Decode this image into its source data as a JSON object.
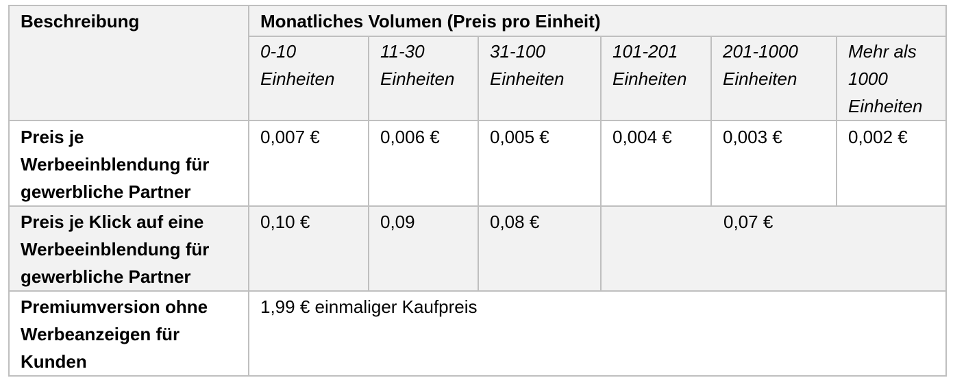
{
  "table": {
    "header": {
      "description_label": "Beschreibung",
      "volume_label": "Monatliches Volumen (Preis pro Einheit)",
      "tiers": [
        "0-10\nEinheiten",
        "11-30\nEinheiten",
        "31-100\nEinheiten",
        "101-201\nEinheiten",
        "201-1000\nEinheiten",
        "Mehr als\n1000\nEinheiten"
      ]
    },
    "rows": [
      {
        "label": "Preis je\nWerbeeinblendung für\ngewerbliche Partner",
        "values": [
          "0,007 €",
          "0,006 €",
          "0,005 €",
          "0,004 €",
          "0,003 €",
          "0,002 €"
        ]
      },
      {
        "label": "Preis je Klick auf eine\nWerbeeinblendung für\ngewerbliche Partner",
        "values": [
          "0,10 €",
          "0,09",
          "0,08 €"
        ],
        "merged_value": "0,07 €"
      },
      {
        "label": "Premiumversion ohne\nWerbeanzeigen für\nKunden",
        "value": "1,99 € einmaliger Kaufpreis"
      }
    ]
  },
  "colors": {
    "header_background": "#f2f2f2",
    "border": "#bfbfbf",
    "body_background": "#ffffff"
  }
}
